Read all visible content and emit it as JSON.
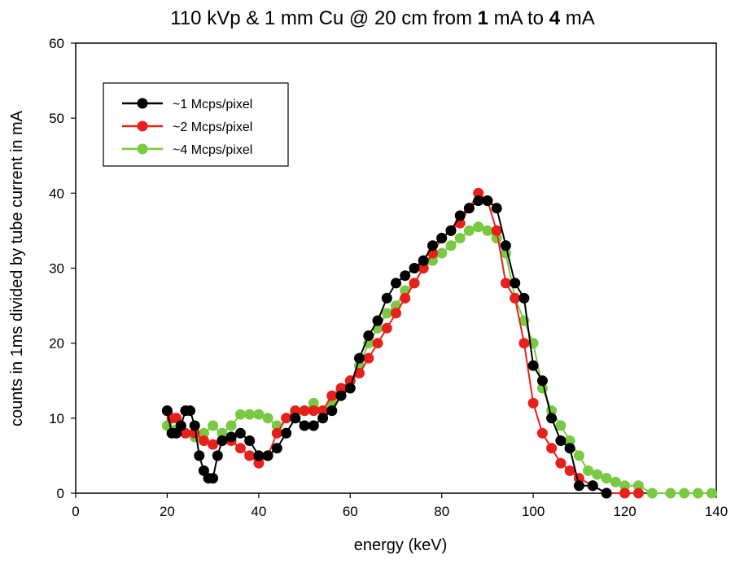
{
  "chart_data": {
    "type": "line",
    "title_parts": [
      {
        "text": "110 kVp & 1 mm Cu @ 20 cm from ",
        "bold": false
      },
      {
        "text": "1",
        "bold": true
      },
      {
        "text": " mA to ",
        "bold": false
      },
      {
        "text": "4",
        "bold": true
      },
      {
        "text": " mA",
        "bold": false
      }
    ],
    "xlabel": "energy (keV)",
    "ylabel": "counts in 1ms divided by tube current in mA",
    "xlim": [
      0,
      140
    ],
    "ylim": [
      0,
      60
    ],
    "xticks": [
      0,
      20,
      40,
      60,
      80,
      100,
      120,
      140
    ],
    "yticks": [
      0,
      10,
      20,
      30,
      40,
      50,
      60
    ],
    "grid": false,
    "legend_position": "top-left",
    "series": [
      {
        "name": "~1 Mcps/pixel",
        "color": "#000000",
        "points": [
          [
            20,
            11
          ],
          [
            21,
            8
          ],
          [
            22,
            8
          ],
          [
            23,
            9
          ],
          [
            24,
            11
          ],
          [
            25,
            11
          ],
          [
            26,
            9
          ],
          [
            27,
            5
          ],
          [
            28,
            3
          ],
          [
            29,
            2
          ],
          [
            30,
            2
          ],
          [
            31,
            5
          ],
          [
            32,
            7
          ],
          [
            34,
            7.5
          ],
          [
            36,
            8
          ],
          [
            38,
            7
          ],
          [
            40,
            5
          ],
          [
            42,
            5
          ],
          [
            44,
            6
          ],
          [
            46,
            8
          ],
          [
            48,
            10
          ],
          [
            50,
            9
          ],
          [
            52,
            9
          ],
          [
            54,
            10
          ],
          [
            56,
            11
          ],
          [
            58,
            13
          ],
          [
            60,
            14
          ],
          [
            62,
            18
          ],
          [
            64,
            21
          ],
          [
            66,
            23
          ],
          [
            68,
            26
          ],
          [
            70,
            28
          ],
          [
            72,
            29
          ],
          [
            74,
            30
          ],
          [
            76,
            31
          ],
          [
            78,
            33
          ],
          [
            80,
            34
          ],
          [
            82,
            35
          ],
          [
            84,
            37
          ],
          [
            86,
            38
          ],
          [
            88,
            39
          ],
          [
            90,
            39
          ],
          [
            92,
            38
          ],
          [
            94,
            33
          ],
          [
            96,
            28
          ],
          [
            98,
            26
          ],
          [
            100,
            17
          ],
          [
            102,
            15
          ],
          [
            104,
            10
          ],
          [
            106,
            7
          ],
          [
            108,
            6
          ],
          [
            110,
            1
          ],
          [
            113,
            1
          ],
          [
            116,
            0
          ]
        ]
      },
      {
        "name": "~2 Mcps/pixel",
        "color": "#e8201c",
        "points": [
          [
            20,
            11
          ],
          [
            21,
            10
          ],
          [
            22,
            10
          ],
          [
            24,
            8
          ],
          [
            26,
            8
          ],
          [
            28,
            7
          ],
          [
            30,
            6.5
          ],
          [
            32,
            7
          ],
          [
            34,
            7
          ],
          [
            36,
            6
          ],
          [
            38,
            5
          ],
          [
            40,
            4
          ],
          [
            42,
            5
          ],
          [
            44,
            8
          ],
          [
            46,
            10
          ],
          [
            48,
            11
          ],
          [
            50,
            11
          ],
          [
            52,
            11
          ],
          [
            54,
            11
          ],
          [
            56,
            13
          ],
          [
            58,
            14
          ],
          [
            60,
            15
          ],
          [
            62,
            16
          ],
          [
            64,
            18
          ],
          [
            66,
            20
          ],
          [
            68,
            22
          ],
          [
            70,
            24
          ],
          [
            72,
            26
          ],
          [
            74,
            28
          ],
          [
            76,
            30
          ],
          [
            78,
            32
          ],
          [
            80,
            34
          ],
          [
            82,
            35
          ],
          [
            84,
            36
          ],
          [
            86,
            38
          ],
          [
            88,
            40
          ],
          [
            90,
            39
          ],
          [
            92,
            35
          ],
          [
            94,
            28
          ],
          [
            96,
            26
          ],
          [
            98,
            20
          ],
          [
            100,
            12
          ],
          [
            102,
            8
          ],
          [
            104,
            6
          ],
          [
            106,
            4
          ],
          [
            108,
            3
          ],
          [
            110,
            2
          ],
          [
            113,
            1
          ],
          [
            116,
            0
          ],
          [
            120,
            0
          ],
          [
            123,
            0
          ]
        ]
      },
      {
        "name": "~4 Mcps/pixel",
        "color": "#7ac943",
        "points": [
          [
            20,
            9
          ],
          [
            22,
            8.5
          ],
          [
            24,
            8
          ],
          [
            26,
            7.5
          ],
          [
            28,
            8
          ],
          [
            30,
            9
          ],
          [
            32,
            8
          ],
          [
            34,
            9
          ],
          [
            36,
            10.5
          ],
          [
            38,
            10.5
          ],
          [
            40,
            10.5
          ],
          [
            42,
            10
          ],
          [
            44,
            9
          ],
          [
            46,
            8
          ],
          [
            48,
            10
          ],
          [
            50,
            11
          ],
          [
            52,
            12
          ],
          [
            54,
            11
          ],
          [
            56,
            12
          ],
          [
            58,
            13
          ],
          [
            60,
            15
          ],
          [
            62,
            17
          ],
          [
            64,
            20
          ],
          [
            66,
            22
          ],
          [
            68,
            24
          ],
          [
            70,
            25
          ],
          [
            72,
            27
          ],
          [
            74,
            28
          ],
          [
            76,
            30
          ],
          [
            78,
            31
          ],
          [
            80,
            32
          ],
          [
            82,
            33
          ],
          [
            84,
            34
          ],
          [
            86,
            35
          ],
          [
            88,
            35.5
          ],
          [
            90,
            35
          ],
          [
            92,
            34
          ],
          [
            94,
            32
          ],
          [
            96,
            26
          ],
          [
            98,
            23
          ],
          [
            100,
            20
          ],
          [
            102,
            14
          ],
          [
            104,
            11
          ],
          [
            106,
            9
          ],
          [
            108,
            7
          ],
          [
            110,
            5
          ],
          [
            112,
            3
          ],
          [
            114,
            2.5
          ],
          [
            116,
            2
          ],
          [
            118,
            1.5
          ],
          [
            120,
            1
          ],
          [
            123,
            1
          ],
          [
            126,
            0
          ],
          [
            130,
            0
          ],
          [
            133,
            0
          ],
          [
            136,
            0
          ],
          [
            139,
            0
          ]
        ]
      }
    ]
  }
}
